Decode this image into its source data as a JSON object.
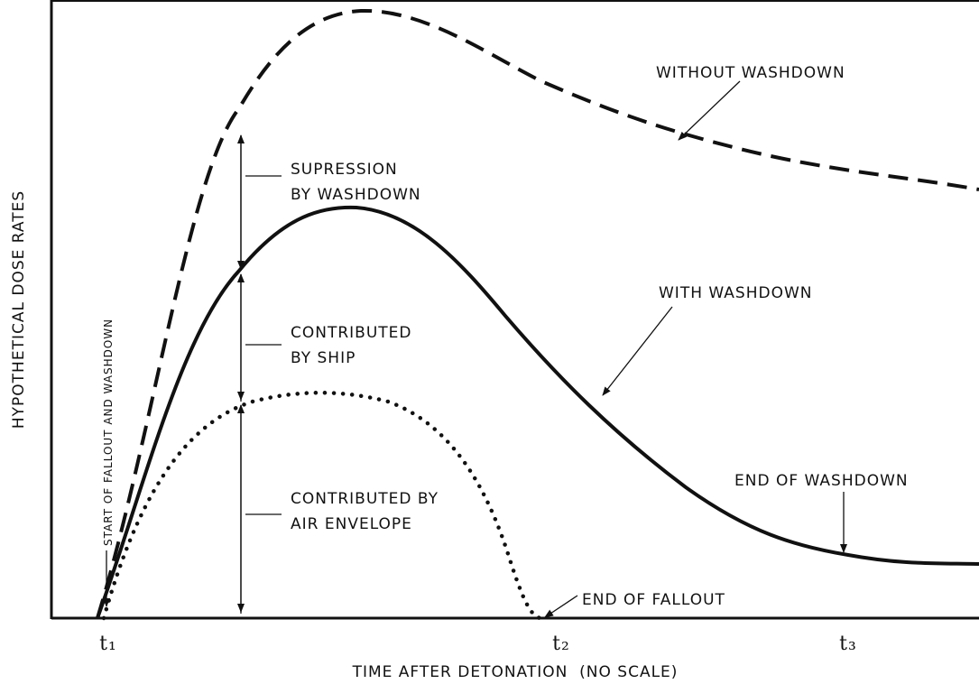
{
  "axes": {
    "y_label": "HYPOTHETICAL DOSE RATES",
    "x_label": "TIME AFTER DETONATION  (NO SCALE)",
    "x_ticks": [
      "t₁",
      "t₂",
      "t₃"
    ]
  },
  "annotations": {
    "without_washdown": "WITHOUT WASHDOWN",
    "with_washdown": "WITH WASHDOWN",
    "supression": [
      "SUPRESSION",
      "BY WASHDOWN"
    ],
    "contributed_ship": [
      "CONTRIBUTED",
      "BY SHIP"
    ],
    "contributed_air": [
      "CONTRIBUTED BY",
      "AIR ENVELOPE"
    ],
    "end_of_washdown": "END OF WASHDOWN",
    "end_of_fallout": "END OF FALLOUT",
    "start": "START OF FALLOUT AND WASHDOWN"
  }
}
